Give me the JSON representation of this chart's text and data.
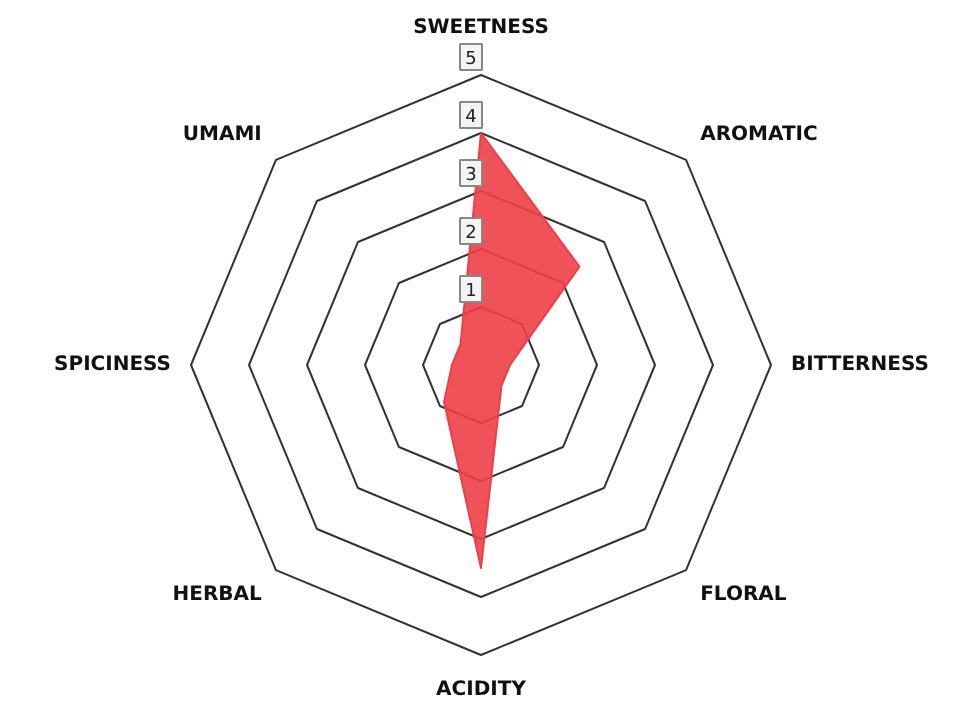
{
  "chart_data": {
    "type": "radar",
    "categories": [
      "SWEETNESS",
      "AROMATIC",
      "BITTERNESS",
      "FLORAL",
      "ACIDITY",
      "HERBAL",
      "SPICINESS",
      "UMAMI"
    ],
    "series": [
      {
        "color": "#ee3f47",
        "values": [
          4,
          2.4,
          0.5,
          0.5,
          3.5,
          0.9,
          0.5,
          0.5
        ]
      }
    ],
    "ylim": [
      0,
      5
    ],
    "yticks": [
      1,
      2,
      3,
      4,
      5
    ],
    "grid": true
  }
}
